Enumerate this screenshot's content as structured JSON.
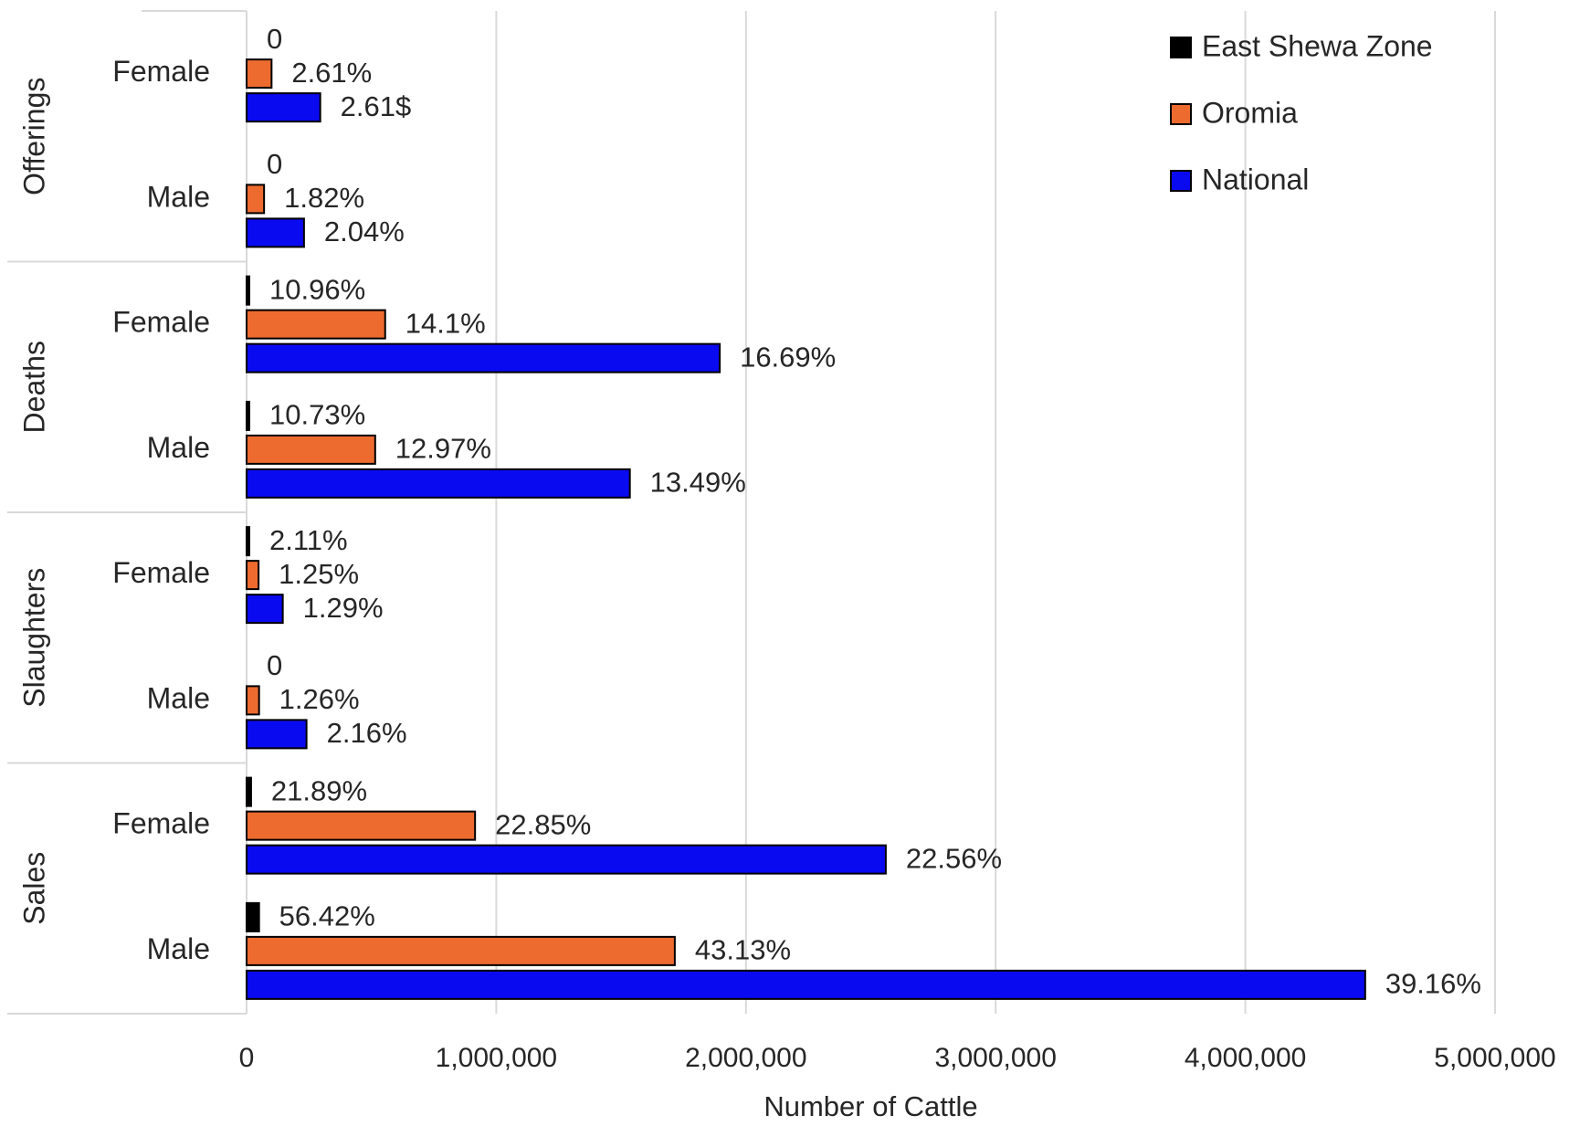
{
  "chart_data": {
    "type": "bar",
    "orientation": "horizontal",
    "xlabel": "Number of Cattle",
    "ylabel": "",
    "xlim": [
      0,
      5000000
    ],
    "x_ticks": [
      0,
      1000000,
      2000000,
      3000000,
      4000000,
      5000000
    ],
    "x_tick_labels": [
      "0",
      "1,000,000",
      "2,000,000",
      "3,000,000",
      "4,000,000",
      "5,000,000"
    ],
    "grid": "vertical",
    "legend_position": "top-right",
    "groups": [
      {
        "name": "Offerings",
        "categories": [
          {
            "name": "Female",
            "bars": [
              {
                "series": "East Shewa Zone",
                "value": 0,
                "label": "0"
              },
              {
                "series": "Oromia",
                "value": 100000,
                "label": "2.61%"
              },
              {
                "series": "National",
                "value": 295000,
                "label": "2.61$"
              }
            ]
          },
          {
            "name": "Male",
            "bars": [
              {
                "series": "East Shewa Zone",
                "value": 0,
                "label": "0"
              },
              {
                "series": "Oromia",
                "value": 70000,
                "label": "1.82%"
              },
              {
                "series": "National",
                "value": 230000,
                "label": "2.04%"
              }
            ]
          }
        ]
      },
      {
        "name": "Deaths",
        "categories": [
          {
            "name": "Female",
            "bars": [
              {
                "series": "East Shewa Zone",
                "value": 8000,
                "label": "10.96%"
              },
              {
                "series": "Oromia",
                "value": 555000,
                "label": "14.1%"
              },
              {
                "series": "National",
                "value": 1895000,
                "label": "16.69%"
              }
            ]
          },
          {
            "name": "Male",
            "bars": [
              {
                "series": "East Shewa Zone",
                "value": 8000,
                "label": "10.73%"
              },
              {
                "series": "Oromia",
                "value": 515000,
                "label": "12.97%"
              },
              {
                "series": "National",
                "value": 1535000,
                "label": "13.49%"
              }
            ]
          }
        ]
      },
      {
        "name": "Slaughters",
        "categories": [
          {
            "name": "Female",
            "bars": [
              {
                "series": "East Shewa Zone",
                "value": 2000,
                "label": "2.11%"
              },
              {
                "series": "Oromia",
                "value": 48000,
                "label": "1.25%"
              },
              {
                "series": "National",
                "value": 145000,
                "label": "1.29%"
              }
            ]
          },
          {
            "name": "Male",
            "bars": [
              {
                "series": "East Shewa Zone",
                "value": 0,
                "label": "0"
              },
              {
                "series": "Oromia",
                "value": 50000,
                "label": "1.26%"
              },
              {
                "series": "National",
                "value": 240000,
                "label": "2.16%"
              }
            ]
          }
        ]
      },
      {
        "name": "Sales",
        "categories": [
          {
            "name": "Female",
            "bars": [
              {
                "series": "East Shewa Zone",
                "value": 18000,
                "label": "21.89%"
              },
              {
                "series": "Oromia",
                "value": 915000,
                "label": "22.85%"
              },
              {
                "series": "National",
                "value": 2560000,
                "label": "22.56%"
              }
            ]
          },
          {
            "name": "Male",
            "bars": [
              {
                "series": "East Shewa Zone",
                "value": 50000,
                "label": "56.42%"
              },
              {
                "series": "Oromia",
                "value": 1715000,
                "label": "43.13%"
              },
              {
                "series": "National",
                "value": 4480000,
                "label": "39.16%"
              }
            ]
          }
        ]
      }
    ],
    "legend": [
      {
        "name": "East Shewa Zone",
        "color": "#000000"
      },
      {
        "name": "Oromia",
        "color": "#ED6B2F"
      },
      {
        "name": "National",
        "color": "#0A0AF0"
      }
    ]
  }
}
